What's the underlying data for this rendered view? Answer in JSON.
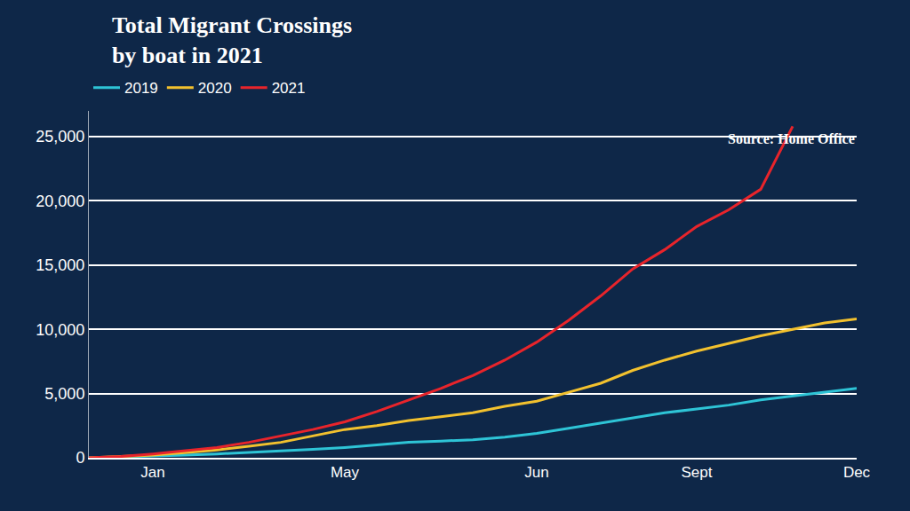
{
  "chart_data": {
    "type": "line",
    "title": "Total Migrant Crossings\nby boat in 2021",
    "annotations": [
      "Source: Home Office"
    ],
    "categories": [
      null,
      null,
      "Jan",
      null,
      null,
      null,
      null,
      null,
      "May",
      null,
      null,
      null,
      null,
      null,
      "Jun",
      null,
      null,
      null,
      null,
      "Sept",
      null,
      null,
      null,
      null,
      "Dec"
    ],
    "series": [
      {
        "name": "2019",
        "color": "#2ec4d6",
        "values": [
          0,
          50,
          100,
          200,
          300,
          400,
          500,
          650,
          800,
          1000,
          1200,
          1300,
          1400,
          1600,
          1900,
          2300,
          2700,
          3100,
          3500,
          3800,
          4100,
          4500,
          4800,
          5100,
          5400
        ]
      },
      {
        "name": "2020",
        "color": "#f2c12e",
        "values": [
          0,
          100,
          200,
          400,
          600,
          900,
          1200,
          1700,
          2200,
          2500,
          2900,
          3200,
          3500,
          4000,
          4400,
          5100,
          5800,
          6800,
          7600,
          8300,
          8900,
          9500,
          10000,
          10500,
          10800
        ]
      },
      {
        "name": "2021",
        "color": "#e8242b",
        "values": [
          0,
          100,
          300,
          550,
          800,
          1200,
          1700,
          2200,
          2800,
          3600,
          4500,
          5400,
          6400,
          7600,
          9000,
          10700,
          12600,
          14700,
          16200,
          18000,
          19300,
          20900,
          25800,
          null,
          null
        ]
      }
    ],
    "ylim": [
      0,
      27000
    ],
    "yticks": [
      0,
      {
        "value": 5000,
        "label": "5,000"
      },
      {
        "value": 10000,
        "label": "10,000"
      },
      {
        "value": 15000,
        "label": "15,000"
      },
      {
        "value": 20000,
        "label": "20,000"
      },
      {
        "value": 25000,
        "label": "25,000"
      }
    ],
    "grid": true,
    "legend": "top left"
  }
}
